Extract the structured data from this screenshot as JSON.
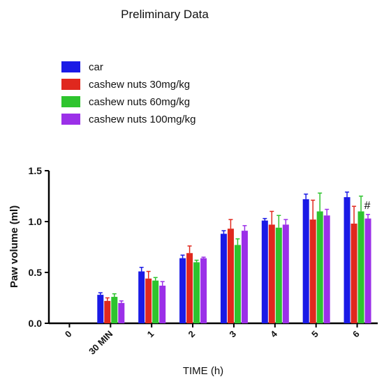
{
  "chart_data": {
    "type": "bar",
    "title": "Preliminary Data",
    "xlabel": "TIME (h)",
    "ylabel": "Paw volume (ml)",
    "ylim": [
      0,
      1.5
    ],
    "yticks": [
      "0.0",
      "0.5",
      "1.0",
      "1.5"
    ],
    "categories": [
      "0",
      "30 MIN",
      "1",
      "2",
      "3",
      "4",
      "5",
      "6"
    ],
    "legend_position": "top-left",
    "grid": false,
    "series": [
      {
        "name": "car",
        "color": "#1a1ae6",
        "values": [
          0,
          0.28,
          0.51,
          0.64,
          0.88,
          1.01,
          1.22,
          1.24
        ],
        "errors": [
          0,
          0.02,
          0.04,
          0.03,
          0.03,
          0.02,
          0.05,
          0.05
        ]
      },
      {
        "name": "cashew nuts 30mg/kg",
        "color": "#e0281e",
        "values": [
          0,
          0.22,
          0.44,
          0.69,
          0.93,
          0.97,
          1.02,
          0.98
        ],
        "errors": [
          0,
          0.03,
          0.07,
          0.07,
          0.09,
          0.13,
          0.19,
          0.17
        ]
      },
      {
        "name": "cashew nuts 60mg/kg",
        "color": "#2ec42e",
        "values": [
          0,
          0.26,
          0.42,
          0.6,
          0.77,
          0.94,
          1.1,
          1.1
        ],
        "errors": [
          0,
          0.03,
          0.03,
          0.02,
          0.06,
          0.12,
          0.18,
          0.15
        ]
      },
      {
        "name": "cashew nuts 100mg/kg",
        "color": "#9b30e8",
        "values": [
          0,
          0.2,
          0.37,
          0.64,
          0.91,
          0.97,
          1.06,
          1.03
        ],
        "errors": [
          0,
          0.02,
          0.04,
          0.01,
          0.05,
          0.05,
          0.06,
          0.04
        ]
      }
    ],
    "annotations": [
      {
        "text": "#",
        "category": "6"
      }
    ]
  }
}
